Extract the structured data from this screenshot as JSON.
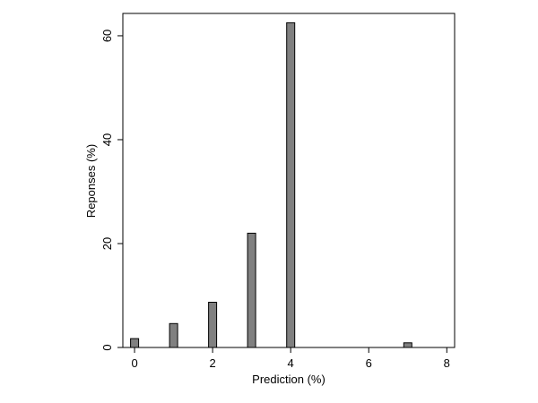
{
  "chart_data": {
    "type": "bar",
    "xlabel": "Prediction (%)",
    "ylabel": "Reponses (%)",
    "xlim": [
      -0.3,
      8.2
    ],
    "ylim": [
      0,
      64.3
    ],
    "xticks": [
      0,
      2,
      4,
      6,
      8
    ],
    "yticks": [
      0,
      20,
      40,
      60
    ],
    "grid": false,
    "bar_color": "#808080",
    "bar_edge_color": "#000000",
    "points": [
      {
        "x": 0,
        "y": 1.7
      },
      {
        "x": 1,
        "y": 4.6
      },
      {
        "x": 2,
        "y": 8.7
      },
      {
        "x": 3,
        "y": 22.0
      },
      {
        "x": 4,
        "y": 62.5
      },
      {
        "x": 7,
        "y": 0.9
      }
    ]
  }
}
